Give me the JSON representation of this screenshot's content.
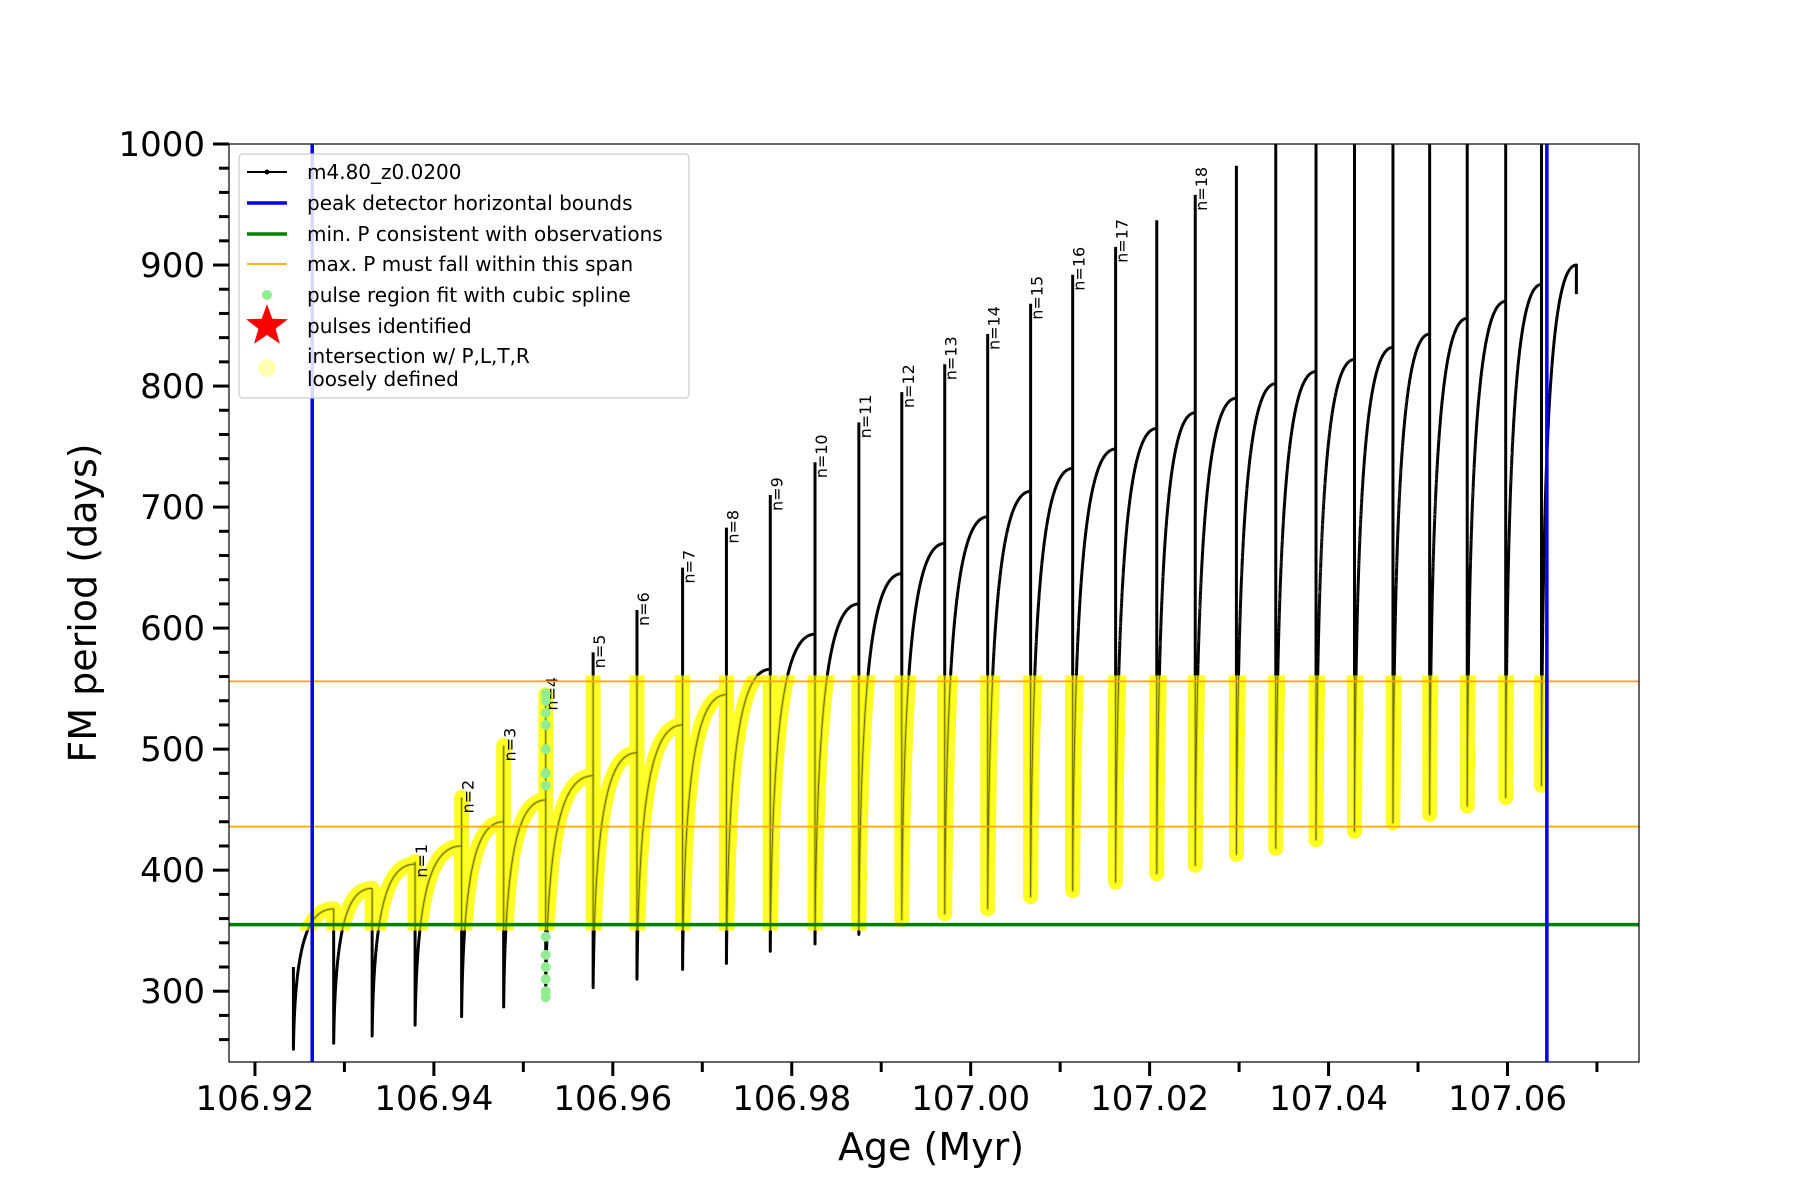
{
  "chart_data": {
    "type": "line",
    "x_label": "Age (Myr)",
    "y_label": "FM period (days)",
    "xlim": [
      106.9171,
      107.0747
    ],
    "ylim": [
      241.5,
      1000
    ],
    "xticks": [
      106.92,
      106.94,
      106.96,
      106.98,
      {
        "value": 107,
        "label": "107.00"
      },
      107.02,
      107.04,
      107.06
    ],
    "xminor": [
      106.93,
      106.95,
      106.97,
      106.99,
      107.01,
      107.03,
      107.05,
      107.07
    ],
    "yticks": [
      300,
      400,
      500,
      600,
      700,
      800,
      900,
      1000
    ],
    "yminor": [
      260,
      280,
      320,
      340,
      360,
      380,
      420,
      440,
      460,
      480,
      520,
      540,
      560,
      580,
      620,
      640,
      660,
      680,
      720,
      740,
      760,
      780,
      820,
      840,
      860,
      880,
      920,
      940,
      960,
      980
    ],
    "legend": "upper left",
    "series": {
      "name": "m4.80_z0.0200",
      "color": "#000000",
      "ages": [
        106.9243,
        106.9288,
        106.9331,
        106.9379,
        106.9431,
        106.9478,
        106.9525,
        106.9578,
        106.9627,
        106.9678,
        106.9727,
        106.9776,
        106.9826,
        106.9875,
        106.9923,
        106.9971,
        107.0019,
        107.0067,
        107.0114,
        107.0162,
        107.0208,
        107.0251,
        107.0297,
        107.0341,
        107.0386,
        107.0429,
        107.0472,
        107.0513,
        107.0555,
        107.0598,
        107.0638
      ],
      "spike": [
        320,
        368,
        385,
        407,
        460,
        503,
        545,
        580,
        615,
        650,
        683,
        710,
        737,
        770,
        795,
        818,
        843,
        868,
        892,
        915,
        937,
        958,
        982,
        1000,
        1000,
        1000,
        1000,
        1000,
        1000,
        1000,
        1000
      ],
      "min": [
        252,
        257,
        263,
        272,
        279,
        287,
        300,
        303,
        310,
        318,
        323,
        333,
        339,
        347,
        359,
        364,
        368,
        378,
        383,
        390,
        397,
        404,
        413,
        418,
        425,
        432,
        439,
        446,
        453,
        460,
        470
      ],
      "peak": [
        368,
        385,
        405,
        420,
        440,
        458,
        478,
        497,
        520,
        545,
        566,
        595,
        620,
        645,
        670,
        692,
        713,
        732,
        748,
        765,
        778,
        790,
        802,
        812,
        822,
        832,
        843,
        856,
        870,
        884,
        900
      ],
      "labels": [
        null,
        null,
        null,
        "n=1",
        "n=2",
        "n=3",
        "n=4",
        "n=5",
        "n=6",
        "n=7",
        "n=8",
        "n=9",
        "n=10",
        "n=11",
        "n=12",
        "n=13",
        "n=14",
        "n=15",
        "n=16",
        "n=17",
        null,
        "n=18",
        null,
        null,
        null,
        null,
        null,
        null,
        null,
        null,
        null
      ],
      "end_age": 107.0677,
      "end_value": 876
    },
    "bounds": {
      "name": "peak detector horizontal bounds",
      "color": "#0000ff",
      "values": [
        106.9264,
        107.0644
      ]
    },
    "min_period": {
      "name": "min. P consistent with observations",
      "color": "#008000",
      "value": 355
    },
    "max_span": {
      "name": "max. P must fall within this span",
      "color": "#ffa500",
      "values": [
        436,
        556
      ]
    },
    "spline_fit": {
      "name": "pulse region fit with cubic spline",
      "color": "#90ee90",
      "age": 106.9525,
      "values": [
        546,
        540,
        530,
        520,
        500,
        480,
        470,
        345,
        330,
        320,
        310,
        300,
        295
      ]
    },
    "pulses_identified": {
      "name": "pulses identified",
      "color": "#ff0000"
    },
    "intersection": {
      "name": "intersection w/ P,L,T,R\nloosely defined",
      "color": "#ffff00"
    }
  }
}
